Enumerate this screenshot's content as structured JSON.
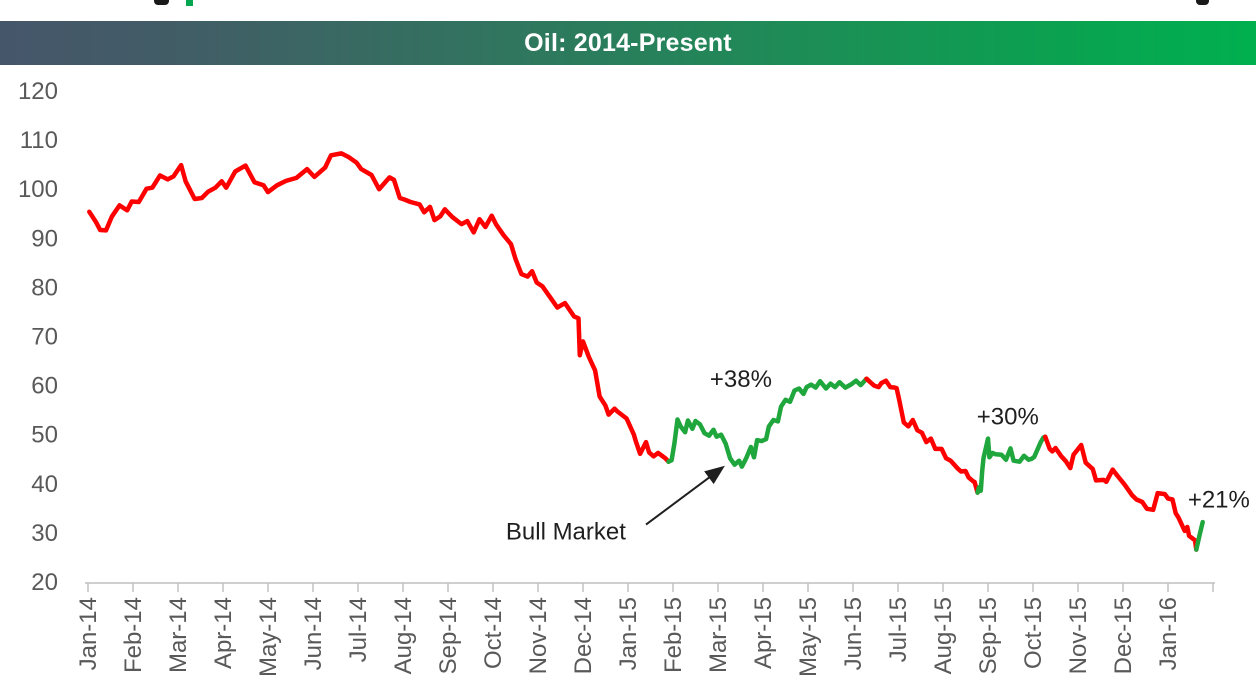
{
  "header": {
    "title": "Oil: 2014-Present",
    "bar_gradient_left": "#46566A",
    "bar_gradient_right": "#00B04F",
    "title_color": "#FFFFFF"
  },
  "colors": {
    "decline_line": "#FF0000",
    "bull_line": "#1FA63C",
    "axis_line": "#BFBFBF",
    "axis_label": "#595959",
    "annotation_text": "#1F1F1F"
  },
  "chart_data": {
    "type": "line",
    "title": "Oil: 2014-Present",
    "grid": false,
    "x_axis": {
      "unit": "month_index_from_Jan_2014",
      "labels": [
        "Jan-14",
        "Feb-14",
        "Mar-14",
        "Apr-14",
        "May-14",
        "Jun-14",
        "Jul-14",
        "Aug-14",
        "Sep-14",
        "Oct-14",
        "Nov-14",
        "Dec-14",
        "Jan-15",
        "Feb-15",
        "Mar-15",
        "Apr-15",
        "May-15",
        "Jun-15",
        "Jul-15",
        "Aug-15",
        "Sep-15",
        "Oct-15",
        "Nov-15",
        "Dec-15",
        "Jan-16"
      ],
      "tick_count": 26,
      "range_months": [
        0,
        25
      ]
    },
    "y_axis": {
      "ticks": [
        120,
        110,
        100,
        90,
        80,
        70,
        60,
        50,
        40,
        30,
        20
      ],
      "range": [
        20,
        120
      ]
    },
    "series": [
      {
        "name": "decline-2014",
        "color_key": "decline_line",
        "points": [
          [
            0.03,
            95.4
          ],
          [
            0.17,
            93.4
          ],
          [
            0.27,
            91.7
          ],
          [
            0.4,
            91.6
          ],
          [
            0.53,
            94.4
          ],
          [
            0.7,
            96.7
          ],
          [
            0.87,
            95.7
          ],
          [
            0.97,
            97.5
          ],
          [
            1.13,
            97.4
          ],
          [
            1.3,
            100.1
          ],
          [
            1.43,
            100.3
          ],
          [
            1.6,
            102.8
          ],
          [
            1.77,
            102.0
          ],
          [
            1.9,
            102.6
          ],
          [
            2.07,
            104.9
          ],
          [
            2.17,
            101.6
          ],
          [
            2.37,
            98.0
          ],
          [
            2.53,
            98.2
          ],
          [
            2.67,
            99.5
          ],
          [
            2.83,
            100.3
          ],
          [
            2.97,
            101.6
          ],
          [
            3.07,
            100.3
          ],
          [
            3.27,
            103.6
          ],
          [
            3.5,
            104.8
          ],
          [
            3.7,
            101.4
          ],
          [
            3.9,
            100.8
          ],
          [
            4.0,
            99.4
          ],
          [
            4.2,
            100.8
          ],
          [
            4.4,
            101.7
          ],
          [
            4.63,
            102.3
          ],
          [
            4.87,
            104.1
          ],
          [
            5.03,
            102.5
          ],
          [
            5.27,
            104.4
          ],
          [
            5.4,
            106.9
          ],
          [
            5.63,
            107.3
          ],
          [
            5.8,
            106.5
          ],
          [
            5.97,
            105.4
          ],
          [
            6.07,
            104.1
          ],
          [
            6.3,
            102.9
          ],
          [
            6.47,
            100.0
          ],
          [
            6.7,
            102.4
          ],
          [
            6.8,
            101.9
          ],
          [
            6.93,
            98.2
          ],
          [
            7.03,
            97.9
          ],
          [
            7.17,
            97.4
          ],
          [
            7.37,
            96.9
          ],
          [
            7.47,
            95.3
          ],
          [
            7.6,
            96.4
          ],
          [
            7.7,
            93.7
          ],
          [
            7.83,
            94.5
          ],
          [
            7.93,
            95.9
          ],
          [
            8.1,
            94.3
          ],
          [
            8.3,
            92.9
          ],
          [
            8.43,
            93.5
          ],
          [
            8.57,
            91.2
          ],
          [
            8.7,
            93.9
          ],
          [
            8.83,
            92.3
          ],
          [
            8.97,
            94.6
          ],
          [
            9.07,
            92.8
          ],
          [
            9.23,
            90.7
          ],
          [
            9.4,
            88.8
          ],
          [
            9.5,
            85.8
          ],
          [
            9.63,
            82.7
          ],
          [
            9.77,
            82.2
          ],
          [
            9.87,
            83.3
          ],
          [
            9.97,
            81.0
          ],
          [
            10.1,
            80.2
          ],
          [
            10.3,
            77.6
          ],
          [
            10.43,
            75.9
          ],
          [
            10.6,
            76.8
          ],
          [
            10.8,
            74.1
          ],
          [
            10.9,
            73.7
          ],
          [
            10.93,
            66.2
          ],
          [
            11.0,
            69.0
          ],
          [
            11.13,
            65.8
          ],
          [
            11.27,
            63.1
          ],
          [
            11.37,
            57.8
          ],
          [
            11.5,
            55.9
          ],
          [
            11.57,
            54.1
          ],
          [
            11.7,
            55.3
          ],
          [
            11.77,
            54.7
          ],
          [
            11.97,
            53.3
          ],
          [
            12.13,
            50.0
          ],
          [
            12.17,
            48.8
          ],
          [
            12.27,
            46.1
          ],
          [
            12.4,
            48.5
          ],
          [
            12.47,
            46.4
          ],
          [
            12.57,
            45.6
          ],
          [
            12.67,
            46.3
          ],
          [
            12.83,
            45.2
          ],
          [
            12.9,
            44.5
          ]
        ]
      },
      {
        "name": "bull-market-plus-38pct",
        "color_key": "bull_line",
        "points": [
          [
            12.9,
            44.5
          ],
          [
            12.97,
            44.8
          ],
          [
            13.03,
            48.2
          ],
          [
            13.1,
            53.1
          ],
          [
            13.17,
            51.7
          ],
          [
            13.27,
            50.5
          ],
          [
            13.33,
            52.9
          ],
          [
            13.43,
            51.2
          ],
          [
            13.5,
            52.8
          ],
          [
            13.6,
            52.1
          ],
          [
            13.7,
            50.3
          ],
          [
            13.8,
            49.8
          ],
          [
            13.9,
            51.0
          ],
          [
            13.97,
            49.6
          ],
          [
            14.07,
            50.0
          ],
          [
            14.17,
            48.2
          ],
          [
            14.27,
            45.2
          ],
          [
            14.37,
            43.9
          ],
          [
            14.47,
            44.7
          ],
          [
            14.53,
            43.5
          ],
          [
            14.63,
            45.3
          ],
          [
            14.73,
            47.5
          ],
          [
            14.8,
            45.4
          ],
          [
            14.87,
            48.9
          ],
          [
            14.97,
            48.7
          ],
          [
            15.07,
            49.1
          ],
          [
            15.13,
            51.7
          ],
          [
            15.23,
            53.0
          ],
          [
            15.33,
            52.7
          ],
          [
            15.4,
            55.7
          ],
          [
            15.5,
            57.1
          ],
          [
            15.6,
            56.7
          ],
          [
            15.7,
            59.0
          ],
          [
            15.8,
            59.4
          ],
          [
            15.9,
            58.3
          ],
          [
            15.97,
            59.7
          ],
          [
            16.07,
            60.2
          ],
          [
            16.17,
            59.6
          ],
          [
            16.27,
            60.9
          ],
          [
            16.4,
            59.4
          ],
          [
            16.5,
            60.4
          ],
          [
            16.6,
            59.7
          ],
          [
            16.7,
            60.7
          ],
          [
            16.83,
            59.6
          ],
          [
            16.97,
            60.3
          ],
          [
            17.07,
            61.0
          ],
          [
            17.17,
            60.1
          ],
          [
            17.3,
            61.4
          ]
        ]
      },
      {
        "name": "decline-summer-2015",
        "color_key": "decline_line",
        "points": [
          [
            17.3,
            61.4
          ],
          [
            17.37,
            60.8
          ],
          [
            17.47,
            60.0
          ],
          [
            17.57,
            59.7
          ],
          [
            17.63,
            60.5
          ],
          [
            17.73,
            61.0
          ],
          [
            17.83,
            59.7
          ],
          [
            17.93,
            59.6
          ],
          [
            17.97,
            59.5
          ],
          [
            18.03,
            56.9
          ],
          [
            18.13,
            52.5
          ],
          [
            18.23,
            51.7
          ],
          [
            18.33,
            53.0
          ],
          [
            18.43,
            50.9
          ],
          [
            18.53,
            50.4
          ],
          [
            18.63,
            48.5
          ],
          [
            18.73,
            49.2
          ],
          [
            18.83,
            47.1
          ],
          [
            18.97,
            47.1
          ],
          [
            19.07,
            45.2
          ],
          [
            19.17,
            44.7
          ],
          [
            19.33,
            43.1
          ],
          [
            19.4,
            42.5
          ],
          [
            19.5,
            42.6
          ],
          [
            19.57,
            41.3
          ],
          [
            19.67,
            40.5
          ],
          [
            19.7,
            40.4
          ],
          [
            19.77,
            38.2
          ]
        ]
      },
      {
        "name": "bull-market-plus-30pct",
        "color_key": "bull_line",
        "points": [
          [
            19.77,
            38.2
          ],
          [
            19.8,
            39.3
          ],
          [
            19.84,
            38.6
          ],
          [
            19.87,
            42.6
          ],
          [
            19.9,
            45.2
          ],
          [
            20.0,
            49.2
          ],
          [
            20.03,
            45.4
          ],
          [
            20.1,
            46.3
          ],
          [
            20.17,
            46.0
          ],
          [
            20.3,
            45.9
          ],
          [
            20.4,
            44.9
          ],
          [
            20.5,
            47.2
          ],
          [
            20.57,
            44.7
          ],
          [
            20.7,
            44.5
          ],
          [
            20.8,
            45.7
          ],
          [
            20.9,
            44.9
          ],
          [
            20.97,
            45.1
          ],
          [
            21.03,
            45.5
          ],
          [
            21.17,
            48.5
          ],
          [
            21.23,
            49.4
          ],
          [
            21.27,
            49.6
          ]
        ]
      },
      {
        "name": "decline-winter-2015-16",
        "color_key": "decline_line",
        "points": [
          [
            21.27,
            49.6
          ],
          [
            21.37,
            47.1
          ],
          [
            21.43,
            46.6
          ],
          [
            21.5,
            47.3
          ],
          [
            21.63,
            45.6
          ],
          [
            21.73,
            44.6
          ],
          [
            21.83,
            43.2
          ],
          [
            21.9,
            45.9
          ],
          [
            22.07,
            47.9
          ],
          [
            22.17,
            44.3
          ],
          [
            22.33,
            43.0
          ],
          [
            22.4,
            40.7
          ],
          [
            22.57,
            40.8
          ],
          [
            22.63,
            40.4
          ],
          [
            22.77,
            42.9
          ],
          [
            22.87,
            41.7
          ],
          [
            23.03,
            39.9
          ],
          [
            23.2,
            37.7
          ],
          [
            23.3,
            36.8
          ],
          [
            23.43,
            36.3
          ],
          [
            23.53,
            34.9
          ],
          [
            23.67,
            34.7
          ],
          [
            23.77,
            38.1
          ],
          [
            23.93,
            37.9
          ],
          [
            24.0,
            37.0
          ],
          [
            24.1,
            36.8
          ],
          [
            24.17,
            34.0
          ],
          [
            24.23,
            33.2
          ],
          [
            24.37,
            30.4
          ],
          [
            24.43,
            31.2
          ],
          [
            24.47,
            29.4
          ],
          [
            24.6,
            28.5
          ],
          [
            24.63,
            26.6
          ]
        ]
      },
      {
        "name": "bull-market-plus-21pct",
        "color_key": "bull_line",
        "points": [
          [
            24.63,
            26.6
          ],
          [
            24.7,
            29.5
          ],
          [
            24.77,
            32.2
          ]
        ]
      }
    ],
    "annotations": [
      {
        "id": "gain-38",
        "text": "+38%",
        "month": 14.51,
        "value": 61.3
      },
      {
        "id": "gain-30",
        "text": "+30%",
        "month": 20.44,
        "value": 53.7
      },
      {
        "id": "gain-21",
        "text": "+21%",
        "month": 25.13,
        "value": 36.8
      },
      {
        "id": "bull-market-label",
        "text": "Bull Market",
        "month": 10.62,
        "value": 30.3
      }
    ],
    "arrow": {
      "from": [
        12.4,
        31.7
      ],
      "to": [
        14.1,
        43.3
      ]
    }
  }
}
